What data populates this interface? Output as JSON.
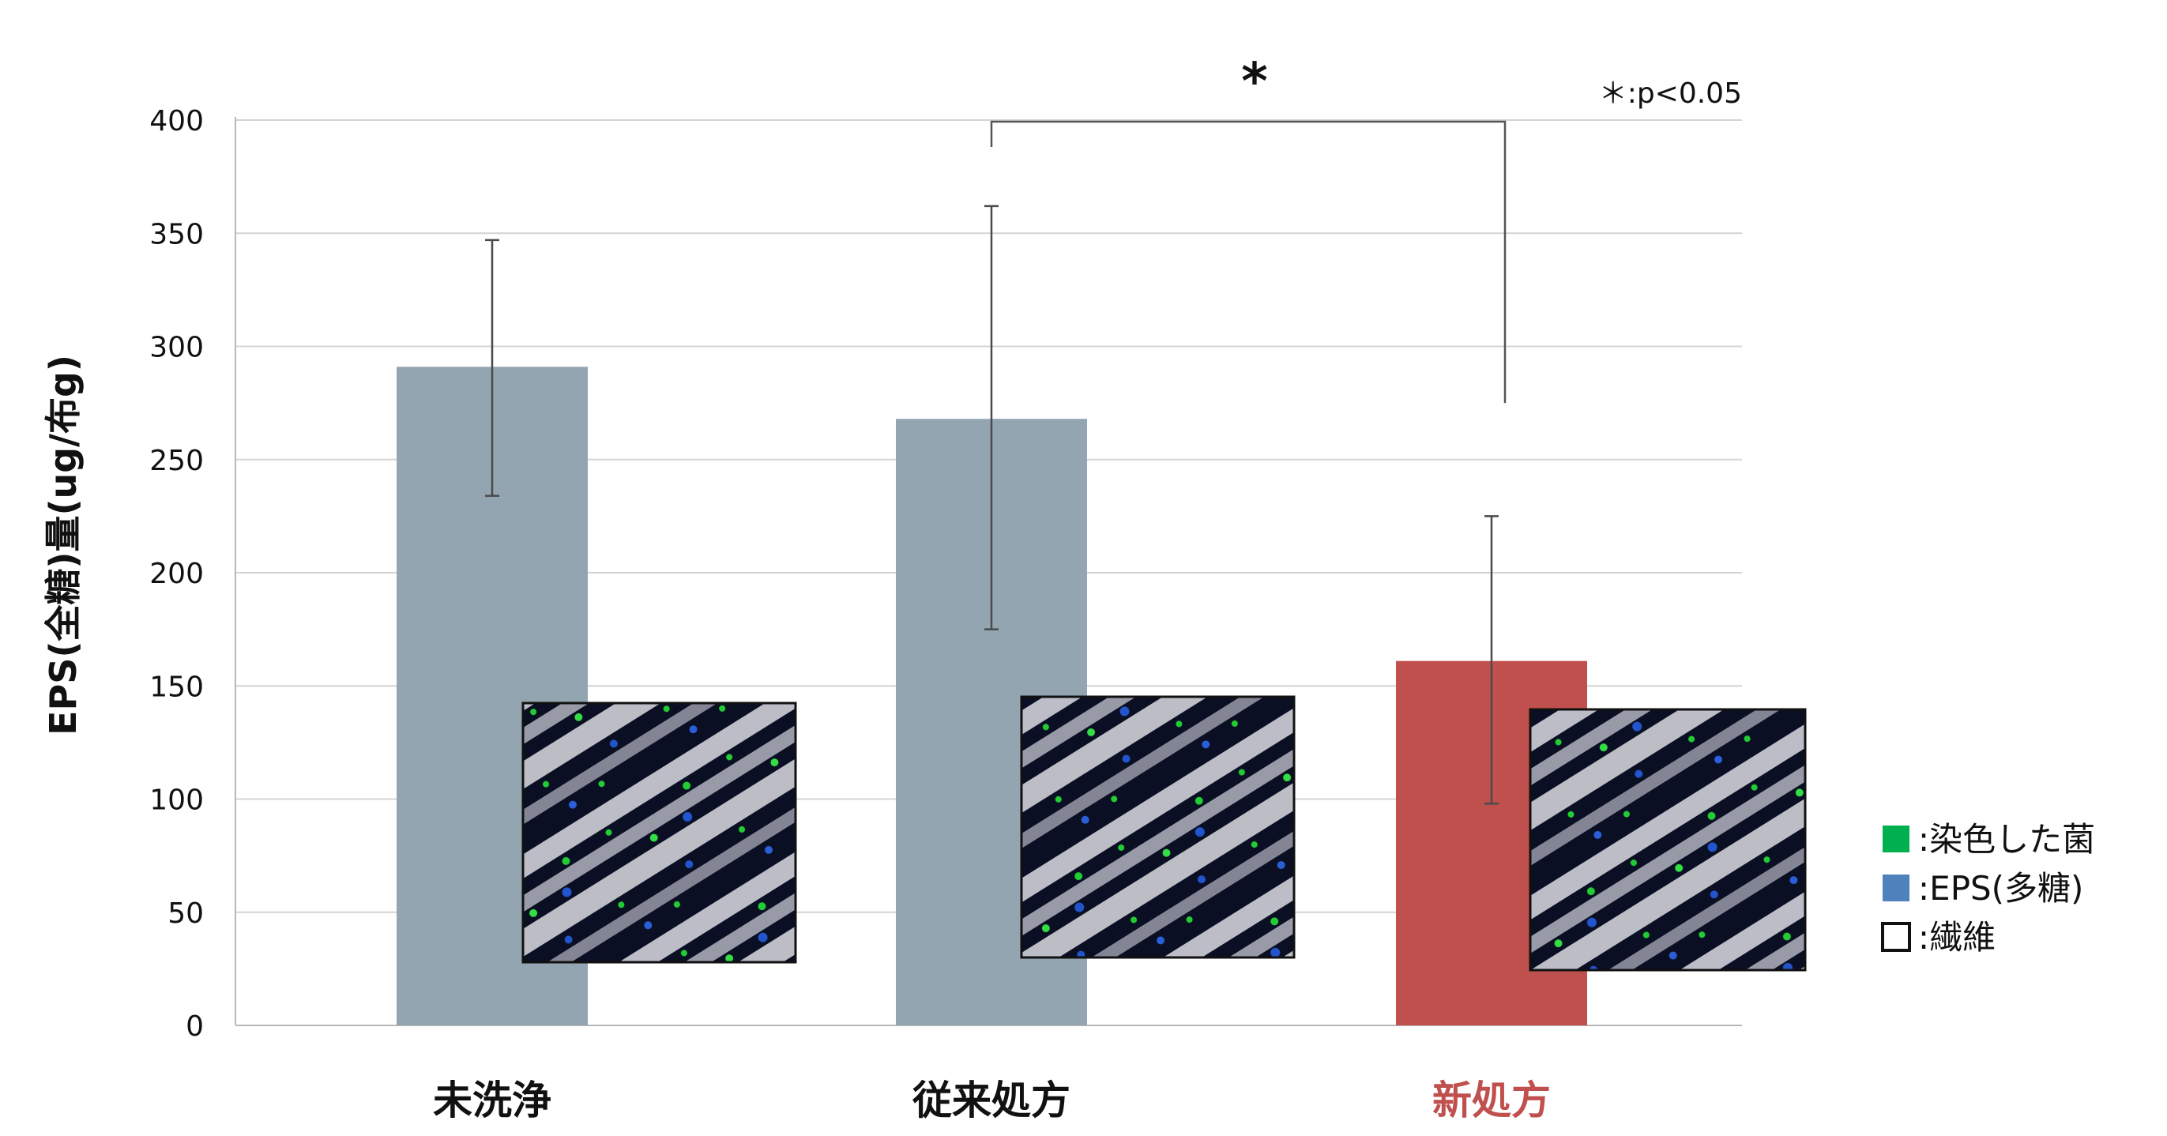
{
  "chart_data": {
    "type": "bar",
    "title": "",
    "ylabel": "EPS(全糖)量(ug/布g)",
    "xlabel": "",
    "ylim": [
      0,
      400
    ],
    "yticks": [
      0,
      50,
      100,
      150,
      200,
      250,
      300,
      350,
      400
    ],
    "categories": [
      "未洗浄",
      "従来処方",
      "新処方"
    ],
    "values": [
      291,
      268,
      161
    ],
    "error_low": [
      234,
      175,
      98
    ],
    "error_high": [
      347,
      362,
      225
    ],
    "bar_colors": [
      "#94a5b2",
      "#94a5b2",
      "#c0504d"
    ],
    "category_label_colors": [
      "#111111",
      "#111111",
      "#c0504d"
    ],
    "grid": true,
    "significance": {
      "between": [
        "従来処方",
        "新処方"
      ],
      "marker": "*",
      "note": "＊:p<0.05"
    },
    "legend": {
      "placement": "right",
      "items": [
        {
          "label": ":染色した菌",
          "color": "#00b050",
          "icon": "green-square-icon"
        },
        {
          "label": ":EPS(多糖)",
          "color": "#4f81bd",
          "icon": "blue-square-icon"
        },
        {
          "label": ":繊維",
          "color": "#ffffff",
          "icon": "outline-square-icon"
        }
      ]
    },
    "micrographs": [
      {
        "category": "未洗浄",
        "icon": "micrograph-image"
      },
      {
        "category": "従来処方",
        "icon": "micrograph-image"
      },
      {
        "category": "新処方",
        "icon": "micrograph-image"
      }
    ]
  }
}
